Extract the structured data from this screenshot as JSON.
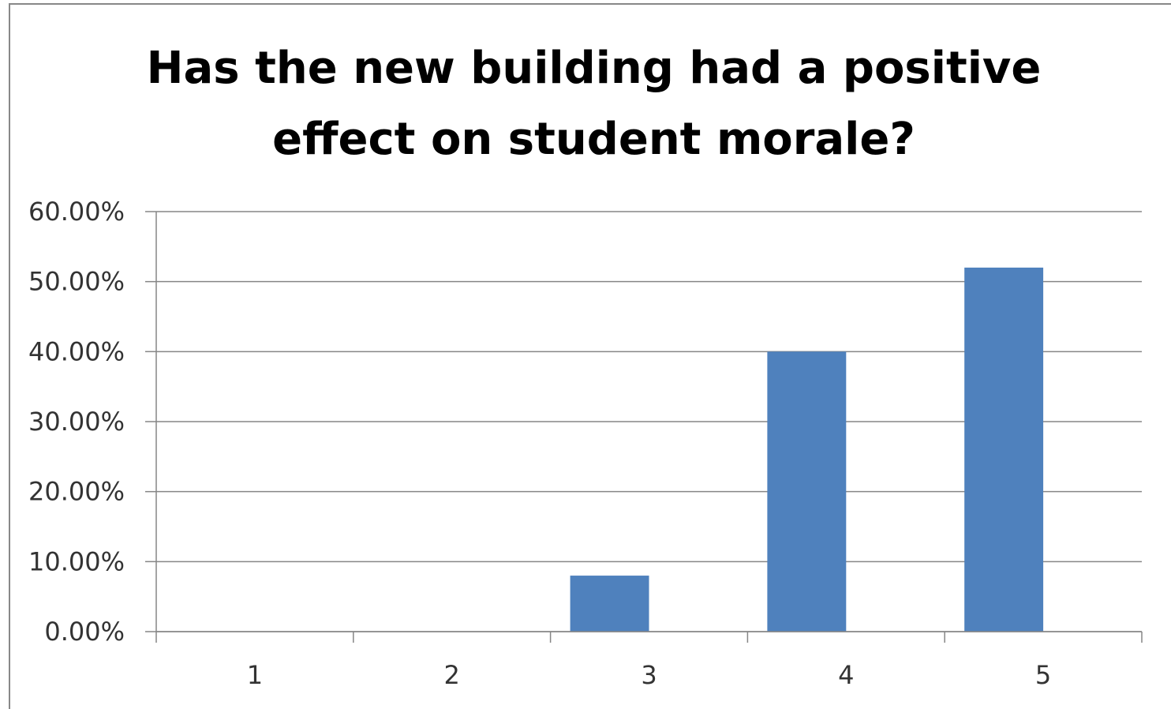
{
  "chart_data": {
    "type": "bar",
    "title": "Has the new building had a positive effect on student morale?",
    "categories": [
      "1",
      "2",
      "3",
      "4",
      "5"
    ],
    "values": [
      0,
      0,
      8,
      40,
      52
    ],
    "color": "#4f81bd",
    "ylim": [
      0,
      60
    ],
    "yticks": [
      {
        "value": 0,
        "label": "0.00%"
      },
      {
        "value": 10,
        "label": "10.00%"
      },
      {
        "value": 20,
        "label": "20.00%"
      },
      {
        "value": 30,
        "label": "30.00%"
      },
      {
        "value": 40,
        "label": "40.00%"
      },
      {
        "value": 50,
        "label": "50.00%"
      },
      {
        "value": 60,
        "label": "60.00%"
      }
    ],
    "grid": true
  }
}
